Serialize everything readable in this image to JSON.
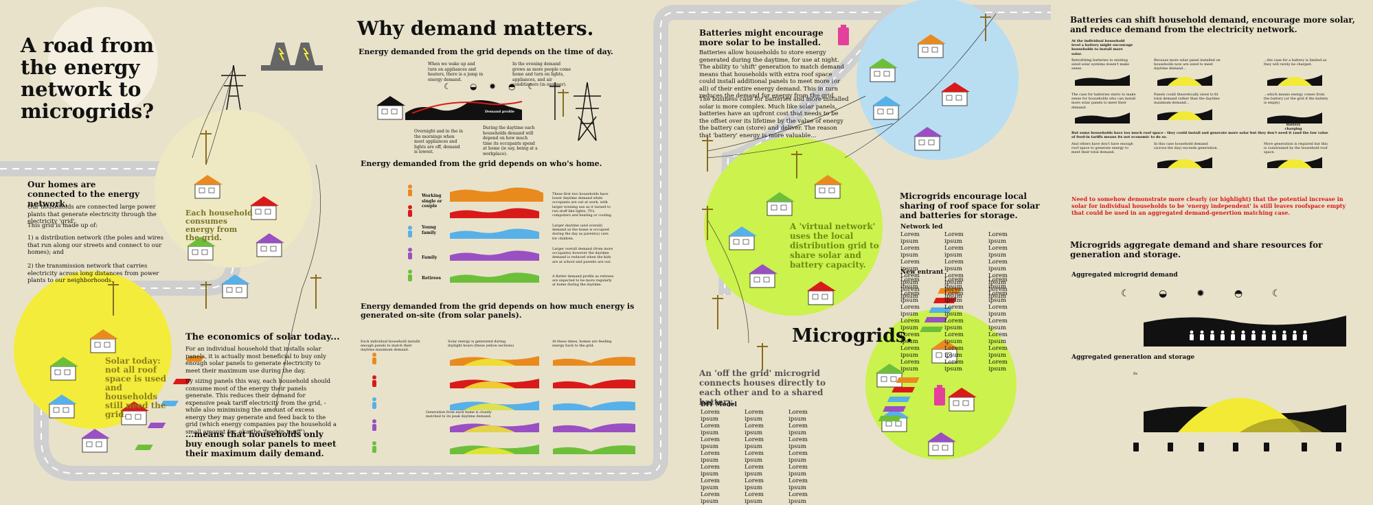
{
  "panel1": {
    "title": "A road from the energy network to microgrids?",
    "homes_heading": "Our homes are connected to the energy network.",
    "homes_p1": "Our households are connected large power plants that generate electricity through the electricity 'grid'.",
    "homes_p2": "This grid is made up of:",
    "homes_p3": "1) a distribution network (the poles and wires that run along our streets and connect to our homes); and",
    "homes_p4": "2) the transmission network that carries electricity across long distances from power plants to our neighborhoods.",
    "circle_label": "Each household consumes energy from the grid.",
    "solar_circle_label": "Solar today: not all roof space is used and households still need the grid.",
    "econ_heading": "The economics of solar today...",
    "econ_p1": "For an individual household that installs solar panels, it is actually most beneficial to buy only enough solar panels to generate electricity to meet their maximum use during the day.",
    "econ_p2": "By sizing panels this way, each household should consume most of the energy their panels generate. This reduces their demand for expensive peak tariff electricity from the grid, - while also minimising the amount of excess energy they may generate and feed back to the grid (which energy companies pay the household a small amount for, aka the 'feed-in tariff').",
    "econ_conclusion": "...means that households only buy enough solar panels to meet their maximum daily demand."
  },
  "panel2": {
    "title": "Why demand matters.",
    "s1_heading": "Energy demanded from the grid depends on the time of day.",
    "s1_note1": "When we wake up and turn on appliances and heaters, there is a jump in energy demand.",
    "s1_note2": "In the evening demand grows as more people come home and turn on lights, appliances, and air conditioners (in summer).",
    "s1_note3": "Overnight and in the in the mornings when most appliances and lights are off, demand is lowest.",
    "s1_note4": "During the daytime each households demand will depend on how much time its occupants spend at home (ie say, being at a workplace).",
    "demand_profile_label": "Demand profile",
    "s2_heading": "Energy demanded from the grid depends on who's home.",
    "s2_rows": [
      {
        "label": "Working single or couple",
        "desc": "These first two households have lower daytime demand while occupants are out at work, with larger evening use as it turned to run stuff like lights, TVs, computers and heating or cooling."
      },
      {
        "label": "",
        "desc": ""
      },
      {
        "label": "Young family",
        "desc": "Larger daytime (and overall) demand as the home is occupied during the day as parent(s) care for children."
      },
      {
        "label": "Family",
        "desc": "Larger overall demand (from more occupants) however the daytime demand is reduced when the kids are at school and parents are out."
      },
      {
        "label": "Retirees",
        "desc": "A flatter demand profile as retirees are expected to be more regularly at home during the daytime."
      }
    ],
    "s3_heading": "Energy demanded from the grid depends on how much energy is generated on-site (from solar panels).",
    "s3_note1": "Each individual household installs enough panels to match their daytime maximum demand.",
    "s3_note2": "Solar energy is generated during daylight hours (these yellow sections)",
    "s3_note3": "At these times, homes are feeding energy back to the grid.",
    "s3_note4": "Generation from each home is closely matched to its peak daytime demand."
  },
  "panel3": {
    "batt_heading": "Batteries might encourage more solar to be installed.",
    "batt_p1": "Batteries allow households to store energy generated during the daytime, for use at night. The ability to 'shift' generation to match demand means that households with extra roof space could install additional panels to meet more (or all) of their entire energy demand. This in turn reduces the demand for energy from the grid.",
    "batt_p2": "The business case for batteries and more installed solar is more complex. Much like solar panels, batteries have an upfront cost that needs to be the offset over its lifetime by the value of energy the battery can (store) and deliver. The reason that 'battery' energy is more valuable...",
    "vn_label": "A 'virtual network' uses the local distribution grid to share solar and battery capacity.",
    "mg_heading": "Microgrids encourage local sharing of roof space for solar and batteries for storage.",
    "network_led": "Network led",
    "new_entrant": "New entrant",
    "lorem": "Lorem ipsum",
    "microgrids_title": "Microgrids.",
    "offgrid_heading": "An 'off the grid' microgrid connects houses directly to each other and to a shared battery.",
    "diy_model": "DIY Model"
  },
  "panel4": {
    "title": "Batteries can shift household demand, encourage more solar, and reduce demand from the electricity network.",
    "n1": "At the individual household level a battery might encourage households to install more solar.",
    "n2": "Retrofitting batteries to existing sized solar systems doesn't make sense.",
    "n3": "Because more solar panel installed on households now are sized to meet daytime demand...",
    "n4": "...the case for a battery is limited as they will rarely be charged.",
    "n5": "The case for batteries starts to make sense for households who can install more solar panels to meet their demand.",
    "n6": "Panels could theoretically sized to fit total demand rather than the daytime maximum demand...",
    "n7": "...which means energy comes from the battery (or the grid if the battery is empty)",
    "battery_charging": "Battery charging",
    "n8": "But some households have too much roof space - they could install and generate more solar but they don't need it (and the low value of feed-in tariffs means its not economic to do so.",
    "n9": "And others have don't have enough roof space to generate energy to meet their total demand.",
    "n10": "In this case household demand (across the day) exceeds generation.",
    "n11": "More generation is required but this is constrained by the household roof space.",
    "red_note": "Need to somehow demonstrate more clearly (or highlight) that the potential increase in solar for individual households to be 'energy independent' is still leaves roofspace empty that could be used in an aggregated demand-genertion matching case.",
    "agg_title": "Microgrids aggregate demand and share resources for generation and storage.",
    "agg_demand": "Aggregated microgrid demand",
    "agg_gen": "Aggregated generation and storage",
    "bs_label": "Bs"
  },
  "colors": {
    "background": "#e8e2cb",
    "orange": "#e98a1e",
    "red": "#d91a1a",
    "blue": "#58b0e8",
    "purple": "#9a4fc3",
    "green": "#6dbf3a",
    "yellow": "#f2ea35",
    "lime": "#c9f24a",
    "sky": "#b9def2",
    "pink": "#e2409a"
  }
}
